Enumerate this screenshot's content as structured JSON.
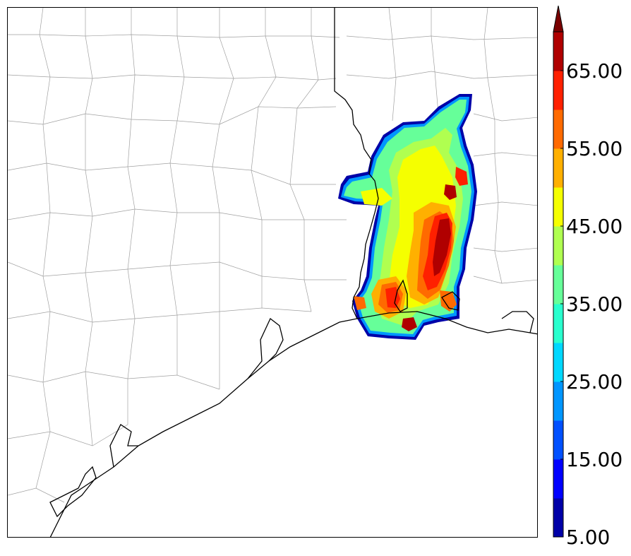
{
  "colorbar": {
    "levels": [
      5,
      10,
      15,
      20,
      25,
      30,
      35,
      40,
      45,
      50,
      55,
      60,
      65,
      70
    ],
    "tick_labels": [
      "5.00",
      "15.00",
      "25.00",
      "35.00",
      "45.00",
      "55.00",
      "65.00"
    ],
    "colors": [
      "#0000a8",
      "#0000ff",
      "#0050ff",
      "#0096ff",
      "#00d8ff",
      "#29ffce",
      "#66ff99",
      "#b0ff50",
      "#f5ff00",
      "#ffb000",
      "#ff6a00",
      "#ff2000",
      "#b00000"
    ],
    "extend": "max",
    "extend_color": "#7a0000"
  },
  "map": {
    "background": "#ffffff",
    "county_line_color": "#999999",
    "coast_line_color": "#000000"
  }
}
